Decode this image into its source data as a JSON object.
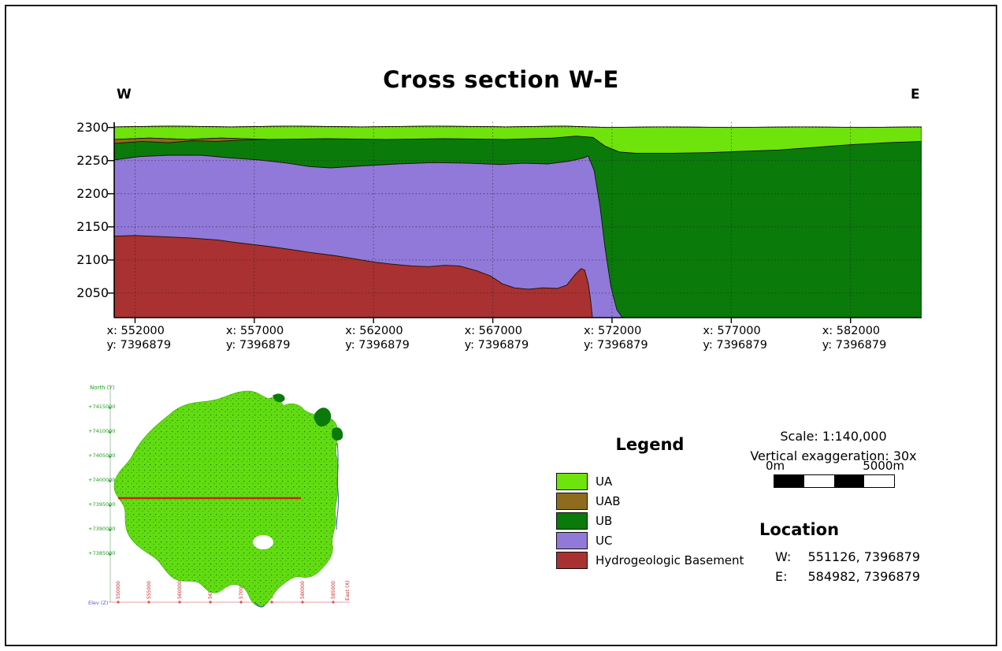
{
  "title": "Cross section W-E",
  "cross_section": {
    "west_label": "W",
    "east_label": "E"
  },
  "chart_data": {
    "type": "area",
    "title": "Cross section W-E",
    "xlim": [
      551126,
      584982
    ],
    "elev_top": 2308,
    "elev_bottom": 2013,
    "y_ticks": [
      2300,
      2250,
      2200,
      2150,
      2100,
      2050
    ],
    "x_ticks": [
      552000,
      557000,
      562000,
      567000,
      572000,
      577000,
      582000
    ],
    "x_prefix": "x: ",
    "y_prefix": "y: ",
    "y_constant": "7396879",
    "grid": "dotted",
    "colors": {
      "UA": "#6fe30c",
      "UAB": "#8f6b1d",
      "UB": "#0a7a0a",
      "UC": "#9179da",
      "Basement": "#a93131",
      "outline": "#141400"
    },
    "layers": {
      "surface": [
        [
          551126,
          2301
        ],
        [
          553500,
          2302
        ],
        [
          556000,
          2301
        ],
        [
          558500,
          2302
        ],
        [
          561500,
          2301
        ],
        [
          564500,
          2302
        ],
        [
          567500,
          2301
        ],
        [
          570000,
          2302
        ],
        [
          571800,
          2300
        ],
        [
          574000,
          2301
        ],
        [
          577000,
          2300
        ],
        [
          580000,
          2301
        ],
        [
          582500,
          2300
        ],
        [
          584982,
          2301
        ]
      ],
      "ua_bottom": [
        [
          551126,
          2282
        ],
        [
          552600,
          2284
        ],
        [
          554200,
          2282
        ],
        [
          555600,
          2284
        ],
        [
          557600,
          2282
        ],
        [
          560000,
          2283
        ],
        [
          562500,
          2282
        ],
        [
          565000,
          2283
        ],
        [
          567500,
          2282
        ],
        [
          569500,
          2284
        ],
        [
          570500,
          2287
        ],
        [
          571200,
          2285
        ],
        [
          571700,
          2272
        ],
        [
          572300,
          2263
        ],
        [
          573000,
          2261
        ],
        [
          574500,
          2261
        ],
        [
          576000,
          2262
        ],
        [
          577500,
          2264
        ],
        [
          579000,
          2266
        ],
        [
          580500,
          2270
        ],
        [
          582000,
          2274
        ],
        [
          583500,
          2277
        ],
        [
          584982,
          2279
        ]
      ],
      "uab_polygon": [
        [
          551126,
          2282
        ],
        [
          552600,
          2284
        ],
        [
          554200,
          2282
        ],
        [
          555600,
          2284
        ],
        [
          557600,
          2282
        ],
        [
          556500,
          2281
        ],
        [
          555400,
          2279
        ],
        [
          554400,
          2280
        ],
        [
          553400,
          2277
        ],
        [
          552300,
          2279
        ],
        [
          551126,
          2276
        ]
      ],
      "uc_top": [
        [
          551126,
          2251
        ],
        [
          552200,
          2256
        ],
        [
          553400,
          2258
        ],
        [
          554800,
          2258
        ],
        [
          556000,
          2254
        ],
        [
          557200,
          2251
        ],
        [
          558400,
          2246
        ],
        [
          559300,
          2241
        ],
        [
          560200,
          2239
        ],
        [
          561500,
          2242
        ],
        [
          563000,
          2245
        ],
        [
          564500,
          2247
        ],
        [
          566000,
          2246
        ],
        [
          567300,
          2244
        ],
        [
          568300,
          2246
        ],
        [
          569300,
          2245
        ],
        [
          570200,
          2249
        ],
        [
          570800,
          2254
        ],
        [
          571000,
          2257
        ],
        [
          571250,
          2235
        ],
        [
          571500,
          2180
        ],
        [
          571700,
          2120
        ],
        [
          571950,
          2060
        ],
        [
          572200,
          2025
        ],
        [
          572430,
          2013
        ]
      ],
      "basement_top": [
        [
          551126,
          2136
        ],
        [
          552000,
          2137
        ],
        [
          553300,
          2135
        ],
        [
          554400,
          2133
        ],
        [
          555500,
          2130
        ],
        [
          556100,
          2127
        ],
        [
          557000,
          2123
        ],
        [
          557700,
          2120
        ],
        [
          558700,
          2115
        ],
        [
          559400,
          2111
        ],
        [
          560300,
          2107
        ],
        [
          561000,
          2103
        ],
        [
          562000,
          2097
        ],
        [
          562700,
          2094
        ],
        [
          563600,
          2091
        ],
        [
          564300,
          2090
        ],
        [
          565000,
          2092
        ],
        [
          565600,
          2091
        ],
        [
          566300,
          2084
        ],
        [
          566900,
          2076
        ],
        [
          567400,
          2064
        ],
        [
          567900,
          2058
        ],
        [
          568500,
          2056
        ],
        [
          569100,
          2058
        ],
        [
          569700,
          2057
        ],
        [
          570100,
          2062
        ],
        [
          570450,
          2078
        ],
        [
          570700,
          2087
        ],
        [
          570850,
          2085
        ],
        [
          571000,
          2065
        ],
        [
          571100,
          2040
        ],
        [
          571180,
          2013
        ]
      ]
    }
  },
  "legend": {
    "title": "Legend",
    "items": [
      {
        "label": "UA",
        "color": "#6fe30c"
      },
      {
        "label": "UAB",
        "color": "#8f6b1d"
      },
      {
        "label": "UB",
        "color": "#0a7a0a"
      },
      {
        "label": "UC",
        "color": "#9179da"
      },
      {
        "label": "Hydrogeologic Basement",
        "color": "#a93131"
      }
    ]
  },
  "scale": {
    "scale_text": "Scale: 1:140,000",
    "exaggeration_text": "Vertical exaggeration: 30x",
    "bar_left": "0m",
    "bar_right": "5000m",
    "bar_segments": [
      "#000000",
      "#ffffff",
      "#000000",
      "#ffffff"
    ]
  },
  "location": {
    "title": "Location",
    "rows": [
      {
        "label": "W:",
        "value": "551126, 7396879"
      },
      {
        "label": "E:",
        "value": "584982, 7396879"
      }
    ]
  },
  "inset_map": {
    "north_axis": "North (Y)",
    "east_axis": "East (X)",
    "elev_axis": "Elev (Z)",
    "y_tick_labels": [
      "+7415000",
      "+7410000",
      "+7405000",
      "+7400000",
      "+7395000",
      "+7390000",
      "+7385000"
    ],
    "x_tick_labels": [
      "550000",
      "555000",
      "560000",
      "565000",
      "570000",
      "575000",
      "580000",
      "585000"
    ],
    "land_color": "#62dc12",
    "section_line_color": "#cc2200"
  }
}
